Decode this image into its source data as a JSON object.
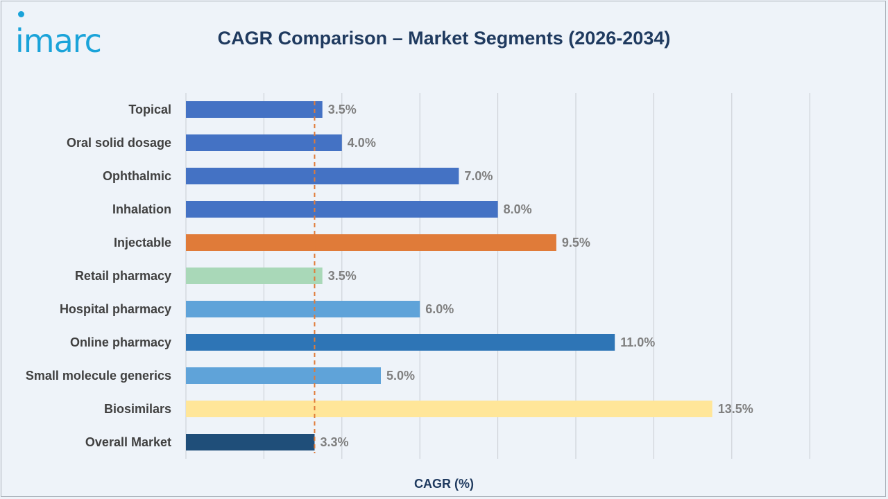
{
  "header": {
    "logo_text": "imarc",
    "title": "CAGR Comparison – Market Segments (2026-2034)"
  },
  "chart_data": {
    "type": "bar",
    "orientation": "horizontal",
    "title": "CAGR Comparison – Market Segments (2026-2034)",
    "xlabel": "CAGR (%)",
    "ylabel": "",
    "xlim": [
      0,
      16
    ],
    "grid": true,
    "legend": "none",
    "reference_line": {
      "value": 3.3,
      "style": "dashed",
      "color": "#e07b39"
    },
    "categories": [
      "Topical",
      "Oral solid dosage",
      "Ophthalmic",
      "Inhalation",
      "Injectable",
      "Retail pharmacy",
      "Hospital pharmacy",
      "Online pharmacy",
      "Small molecule generics",
      "Biosimilars",
      "Overall Market"
    ],
    "values": [
      3.5,
      4.0,
      7.0,
      8.0,
      9.5,
      3.5,
      6.0,
      11.0,
      5.0,
      13.5,
      3.3
    ],
    "value_labels": [
      "3.5%",
      "4.0%",
      "7.0%",
      "8.0%",
      "9.5%",
      "3.5%",
      "6.0%",
      "11.0%",
      "5.0%",
      "13.5%",
      "3.3%"
    ],
    "colors": [
      "#4472c4",
      "#4472c4",
      "#4472c4",
      "#4472c4",
      "#e07b39",
      "#a9d8b8",
      "#5fa3d9",
      "#2e75b6",
      "#5fa3d9",
      "#ffe699",
      "#1f4e79"
    ],
    "gridline_color": "#c8ccd2"
  }
}
